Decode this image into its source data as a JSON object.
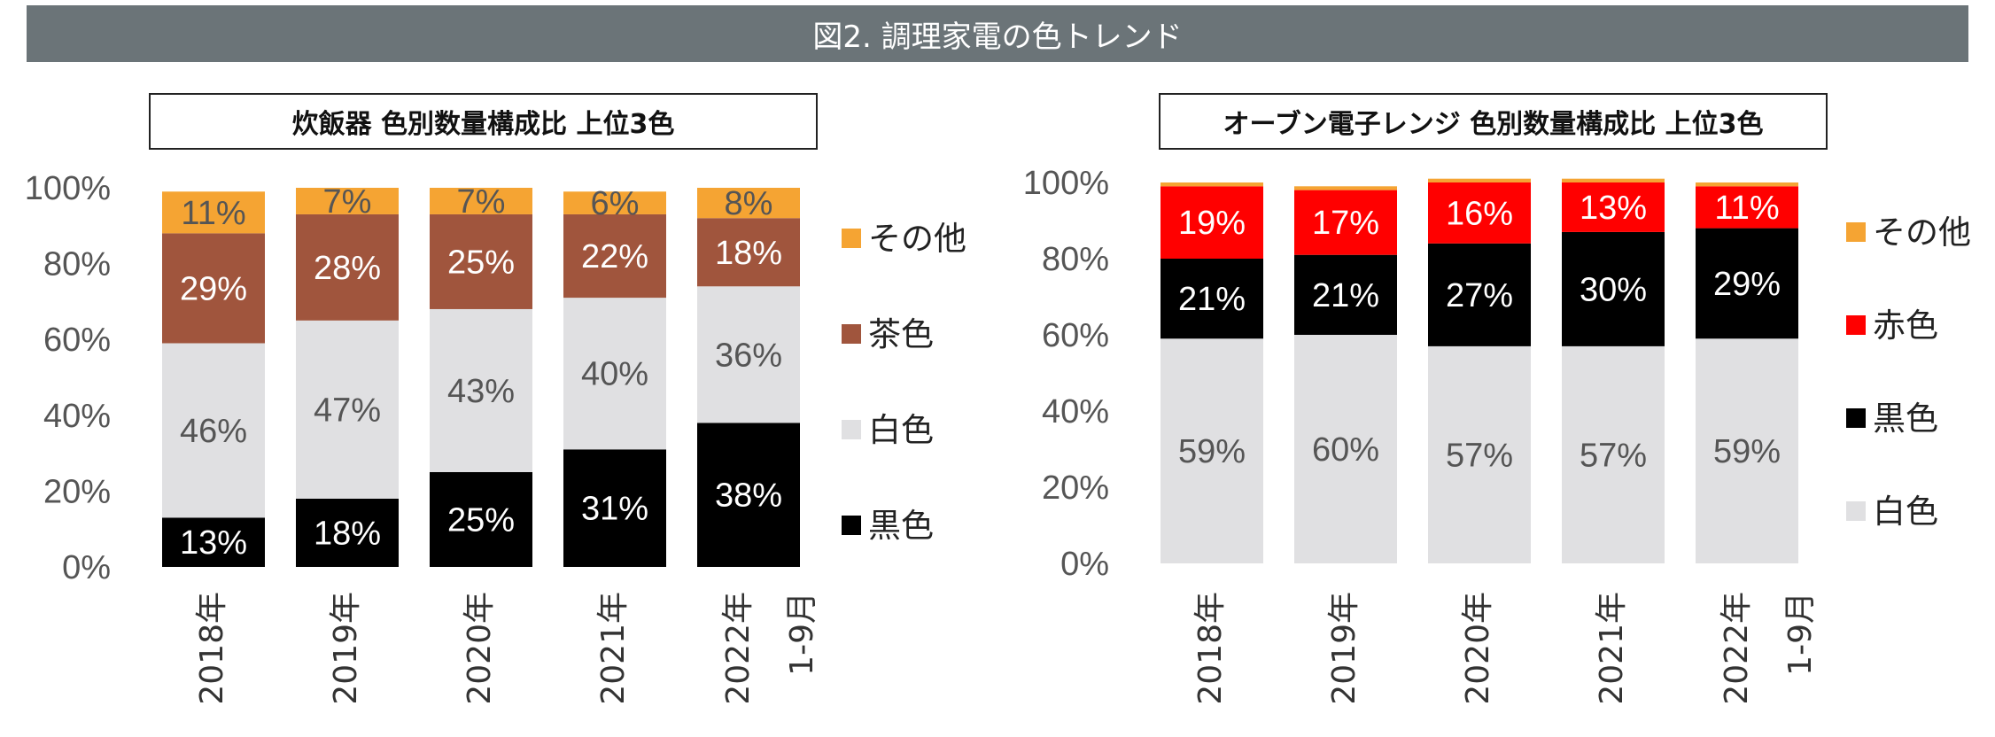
{
  "figure_title": "図2. 調理家電の色トレンド",
  "chart_data": [
    {
      "type": "bar",
      "stacked": true,
      "title": "炊飯器 色別数量構成比 上位3色",
      "categories": [
        "2018年",
        "2019年",
        "2020年",
        "2021年",
        "2022年 1-9月"
      ],
      "ylim": [
        0,
        100
      ],
      "yticks": [
        "0%",
        "20%",
        "40%",
        "60%",
        "80%",
        "100%"
      ],
      "legend_position": "right",
      "series": [
        {
          "name": "黒色",
          "color": "#000000",
          "text_color": "#ffffff",
          "values": [
            13,
            18,
            25,
            31,
            38
          ]
        },
        {
          "name": "白色",
          "color": "#e0e0e2",
          "text_color": "#555555",
          "values": [
            46,
            47,
            43,
            40,
            36
          ]
        },
        {
          "name": "茶色",
          "color": "#a0553d",
          "text_color": "#ffffff",
          "values": [
            29,
            28,
            25,
            22,
            18
          ]
        },
        {
          "name": "その他",
          "color": "#f5a433",
          "text_color": "#555555",
          "values": [
            11,
            7,
            7,
            6,
            8
          ]
        }
      ]
    },
    {
      "type": "bar",
      "stacked": true,
      "title": "オーブン電子レンジ 色別数量構成比 上位3色",
      "categories": [
        "2018年",
        "2019年",
        "2020年",
        "2021年",
        "2022年 1-9月"
      ],
      "ylim": [
        0,
        100
      ],
      "yticks": [
        "0%",
        "20%",
        "40%",
        "60%",
        "80%",
        "100%"
      ],
      "legend_position": "right",
      "series": [
        {
          "name": "白色",
          "color": "#e0e0e2",
          "text_color": "#555555",
          "values": [
            59,
            60,
            57,
            57,
            59
          ]
        },
        {
          "name": "黒色",
          "color": "#000000",
          "text_color": "#ffffff",
          "values": [
            21,
            21,
            27,
            30,
            29
          ]
        },
        {
          "name": "赤色",
          "color": "#ff0000",
          "text_color": "#ffffff",
          "values": [
            19,
            17,
            16,
            13,
            11
          ]
        },
        {
          "name": "その他",
          "color": "#f5a433",
          "text_color": "#555555",
          "values": [
            1,
            1,
            1,
            1,
            1
          ]
        }
      ]
    }
  ]
}
